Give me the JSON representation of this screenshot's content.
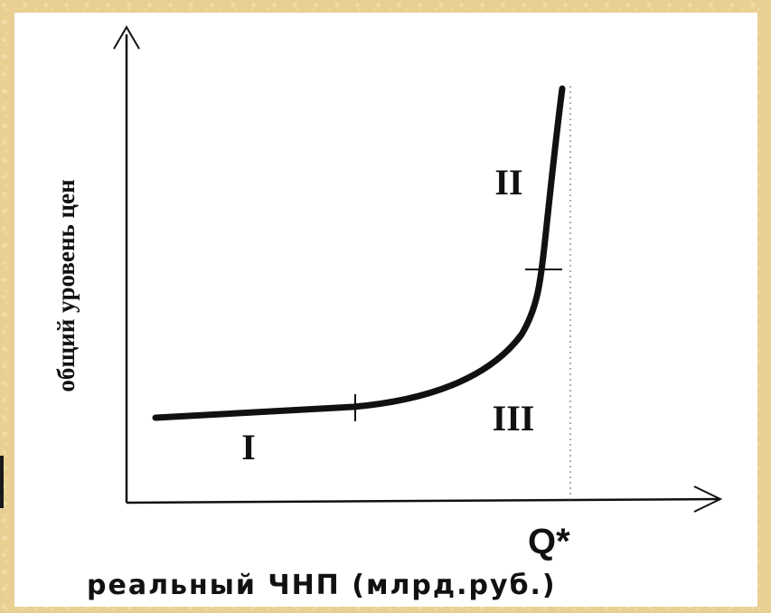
{
  "diagram": {
    "y_axis_label": "общий уровень цен",
    "x_axis_label": "реальный ЧНП (млрд.руб.)",
    "full_capacity_label": "Q*",
    "regions": [
      {
        "id": "I",
        "label": "I"
      },
      {
        "id": "II",
        "label": "II"
      },
      {
        "id": "III",
        "label": "III"
      }
    ],
    "colors": {
      "curve": "#111111",
      "background": "#e9cf92",
      "panel": "#ffffff"
    }
  }
}
